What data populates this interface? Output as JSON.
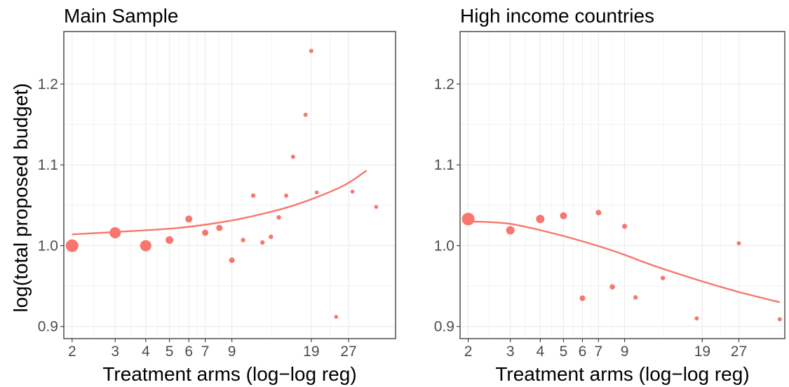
{
  "y_axis_title": "log(total proposed budget)",
  "colors": {
    "points": "#F8766D",
    "grid": "#EBEBEB",
    "frame": "#333333",
    "tick_text": "#4D4D4D"
  },
  "chart_data": [
    {
      "type": "scatter",
      "title": "Main Sample",
      "xlabel": "Treatment arms (log−log reg)",
      "ylabel": "log(total proposed budget)",
      "x_scale": "log",
      "xlim": [
        1.85,
        42
      ],
      "ylim": [
        0.885,
        1.265
      ],
      "x_ticks": [
        2,
        3,
        4,
        5,
        6,
        7,
        9,
        19,
        27
      ],
      "y_ticks": [
        0.9,
        1.0,
        1.1,
        1.2
      ],
      "y_tick_labels": [
        "0.9",
        "1.0",
        "1.1",
        "1.2"
      ],
      "grid": true,
      "points": [
        {
          "x": 2,
          "y": 1.0,
          "size": 9
        },
        {
          "x": 3,
          "y": 1.016,
          "size": 8
        },
        {
          "x": 4,
          "y": 1.0,
          "size": 8
        },
        {
          "x": 5,
          "y": 1.007,
          "size": 5.5
        },
        {
          "x": 6,
          "y": 1.033,
          "size": 5
        },
        {
          "x": 7,
          "y": 1.016,
          "size": 4.5
        },
        {
          "x": 8,
          "y": 1.022,
          "size": 4.5
        },
        {
          "x": 9,
          "y": 0.982,
          "size": 4
        },
        {
          "x": 10,
          "y": 1.007,
          "size": 3.2
        },
        {
          "x": 11,
          "y": 1.062,
          "size": 3.2
        },
        {
          "x": 12,
          "y": 1.004,
          "size": 3.2
        },
        {
          "x": 13,
          "y": 1.011,
          "size": 3.2
        },
        {
          "x": 14,
          "y": 1.035,
          "size": 3.2
        },
        {
          "x": 15,
          "y": 1.062,
          "size": 3
        },
        {
          "x": 16,
          "y": 1.11,
          "size": 3
        },
        {
          "x": 18,
          "y": 1.162,
          "size": 3
        },
        {
          "x": 19,
          "y": 1.241,
          "size": 3
        },
        {
          "x": 20,
          "y": 1.066,
          "size": 2.8
        },
        {
          "x": 24,
          "y": 0.912,
          "size": 2.8
        },
        {
          "x": 28,
          "y": 1.067,
          "size": 2.8
        },
        {
          "x": 35,
          "y": 1.048,
          "size": 2.8
        }
      ],
      "trend": {
        "x": [
          2,
          3,
          5,
          7,
          10,
          15,
          20,
          26,
          32
        ],
        "y": [
          1.014,
          1.017,
          1.021,
          1.026,
          1.034,
          1.047,
          1.06,
          1.075,
          1.093
        ]
      }
    },
    {
      "type": "scatter",
      "title": "High income countries",
      "xlabel": "Treatment arms (log−log reg)",
      "ylabel": "",
      "x_scale": "log",
      "xlim": [
        1.85,
        42
      ],
      "ylim": [
        0.885,
        1.265
      ],
      "x_ticks": [
        2,
        3,
        4,
        5,
        6,
        7,
        9,
        19,
        27
      ],
      "y_ticks": [
        0.9,
        1.0,
        1.1,
        1.2
      ],
      "y_tick_labels": [
        "0.9",
        "1.0",
        "1.1",
        "1.2"
      ],
      "grid": true,
      "points": [
        {
          "x": 2,
          "y": 1.033,
          "size": 9
        },
        {
          "x": 3,
          "y": 1.019,
          "size": 6
        },
        {
          "x": 4,
          "y": 1.033,
          "size": 6
        },
        {
          "x": 5,
          "y": 1.037,
          "size": 5
        },
        {
          "x": 6,
          "y": 0.935,
          "size": 4
        },
        {
          "x": 7,
          "y": 1.041,
          "size": 4
        },
        {
          "x": 8,
          "y": 0.949,
          "size": 3.8
        },
        {
          "x": 9,
          "y": 1.024,
          "size": 3.6
        },
        {
          "x": 10,
          "y": 0.936,
          "size": 3.2
        },
        {
          "x": 13,
          "y": 0.96,
          "size": 3.2
        },
        {
          "x": 18,
          "y": 0.91,
          "size": 3
        },
        {
          "x": 27,
          "y": 1.003,
          "size": 3
        },
        {
          "x": 40,
          "y": 0.909,
          "size": 3
        }
      ],
      "trend": {
        "x": [
          2,
          3,
          5,
          8,
          12,
          18,
          26,
          40
        ],
        "y": [
          1.03,
          1.027,
          1.012,
          0.994,
          0.975,
          0.958,
          0.944,
          0.93
        ]
      }
    }
  ]
}
